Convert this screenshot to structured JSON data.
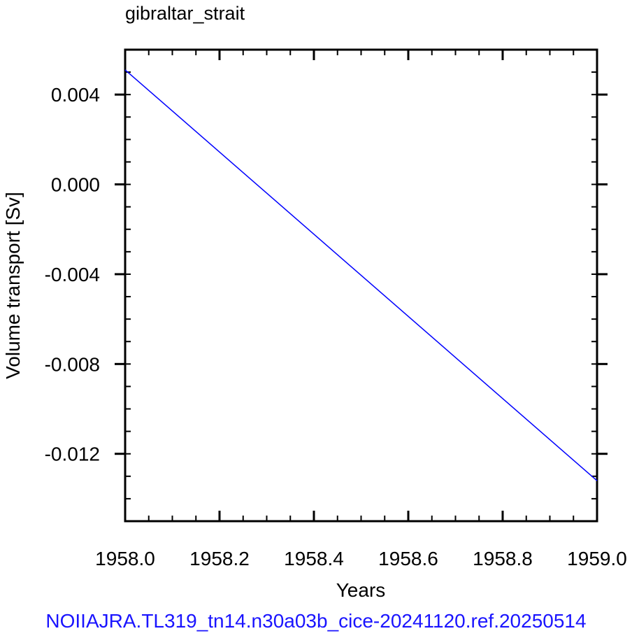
{
  "chart_data": {
    "type": "line",
    "title": "gibraltar_strait",
    "xlabel": "Years",
    "ylabel": "Volume transport [Sv]",
    "xlim": [
      1958.0,
      1959.0
    ],
    "ylim": [
      -0.015,
      0.006
    ],
    "x_ticks": [
      1958.0,
      1958.2,
      1958.4,
      1958.6,
      1958.8,
      1959.0
    ],
    "x_tick_labels": [
      "1958.0",
      "1958.2",
      "1958.4",
      "1958.6",
      "1958.8",
      "1959.0"
    ],
    "x_minor_step": 0.05,
    "y_ticks": [
      0.004,
      0.0,
      -0.004,
      -0.008,
      -0.012
    ],
    "y_tick_labels": [
      "0.004",
      "0.000",
      "-0.004",
      "-0.008",
      "-0.012"
    ],
    "y_minor_step": 0.001,
    "grid": false,
    "series": [
      {
        "color": "#0000ff",
        "x": [
          1958.0,
          1959.0
        ],
        "y": [
          0.0051,
          -0.0132
        ]
      }
    ]
  },
  "footer": {
    "text": "NOIIAJRA.TL319_tn14.n30a03b_cice-20241120.ref.20250514",
    "color": "#1a14ff"
  }
}
